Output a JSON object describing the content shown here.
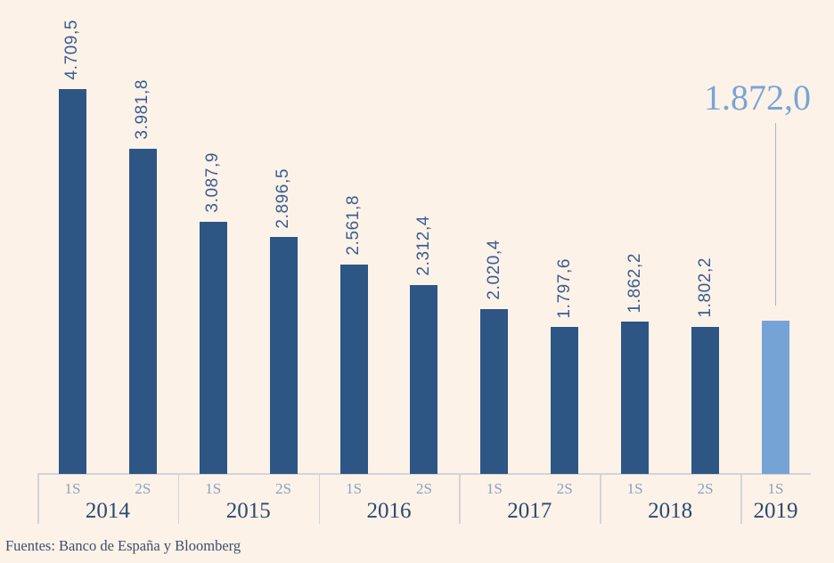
{
  "chart_data": {
    "type": "bar",
    "title": "",
    "xlabel": "",
    "ylabel": "",
    "ylim": [
      0,
      4709.5
    ],
    "grid": false,
    "legend": false,
    "categories": [
      "2014 1S",
      "2014 2S",
      "2015 1S",
      "2015 2S",
      "2016 1S",
      "2016 2S",
      "2017 1S",
      "2017 2S",
      "2018 1S",
      "2018 2S",
      "2019 1S"
    ],
    "points": [
      {
        "year": "2014",
        "semester": "1S",
        "value": 4709.5,
        "label": "4.709,5",
        "highlight": false
      },
      {
        "year": "2014",
        "semester": "2S",
        "value": 3981.8,
        "label": "3.981,8",
        "highlight": false
      },
      {
        "year": "2015",
        "semester": "1S",
        "value": 3087.9,
        "label": "3.087,9",
        "highlight": false
      },
      {
        "year": "2015",
        "semester": "2S",
        "value": 2896.5,
        "label": "2.896,5",
        "highlight": false
      },
      {
        "year": "2016",
        "semester": "1S",
        "value": 2561.8,
        "label": "2.561,8",
        "highlight": false
      },
      {
        "year": "2016",
        "semester": "2S",
        "value": 2312.4,
        "label": "2.312,4",
        "highlight": false
      },
      {
        "year": "2017",
        "semester": "1S",
        "value": 2020.4,
        "label": "2.020,4",
        "highlight": false
      },
      {
        "year": "2017",
        "semester": "2S",
        "value": 1797.6,
        "label": "1.797,6",
        "highlight": false
      },
      {
        "year": "2018",
        "semester": "1S",
        "value": 1862.2,
        "label": "1.862,2",
        "highlight": false
      },
      {
        "year": "2018",
        "semester": "2S",
        "value": 1802.2,
        "label": "1.802,2",
        "highlight": false
      },
      {
        "year": "2019",
        "semester": "1S",
        "value": 1872.0,
        "label": "1.872,0",
        "highlight": true
      }
    ],
    "annotation": {
      "text": "1.872,0",
      "applies_to": "2019 1S"
    },
    "colors": {
      "background": "#fcf2e8",
      "bar": "#2d5685",
      "bar_highlight": "#76a3d6",
      "value_label": "#3a5d90",
      "annotation": "#79a4d6",
      "annotation_connector": "#a5b7cc",
      "axis_line": "#d4d4d6",
      "semester_label": "#8ba2c0",
      "year_label": "#2a4a70",
      "source_text": "#3d4f68"
    }
  },
  "source": {
    "text": "Fuentes: Banco de España y Bloomberg"
  }
}
